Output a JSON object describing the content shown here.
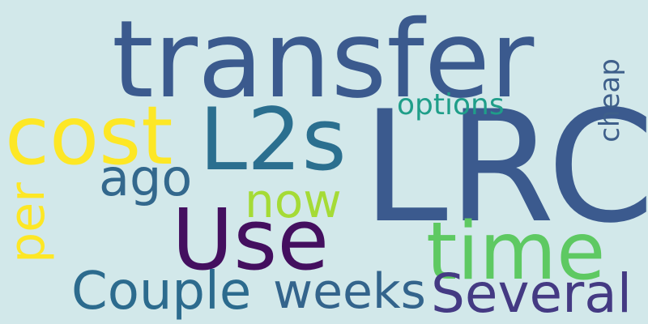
{
  "background": "#d2e8ea",
  "words": [
    {
      "text": "transfer",
      "color": "#3b5a8e"
    },
    {
      "text": "LRC",
      "color": "#3b5a8e"
    },
    {
      "text": "cost",
      "color": "#fde725"
    },
    {
      "text": "L2s",
      "color": "#2b6f8f"
    },
    {
      "text": "options",
      "color": "#1f9e89"
    },
    {
      "text": "cheap",
      "color": "#3e5f8a"
    },
    {
      "text": "ago",
      "color": "#33688d"
    },
    {
      "text": "now",
      "color": "#a5db36"
    },
    {
      "text": "per",
      "color": "#fde725"
    },
    {
      "text": "Use",
      "color": "#440f5f"
    },
    {
      "text": "time",
      "color": "#5ec962"
    },
    {
      "text": "Couple",
      "color": "#2c6b8e"
    },
    {
      "text": "weeks",
      "color": "#33648c"
    },
    {
      "text": "Several",
      "color": "#443a83"
    }
  ]
}
